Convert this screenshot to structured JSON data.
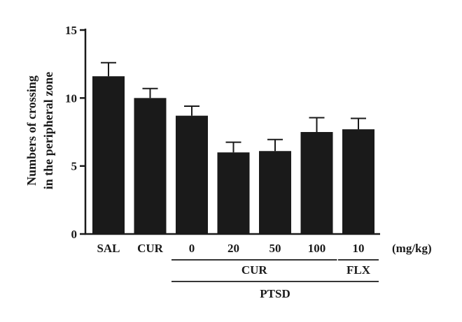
{
  "chart_data": {
    "type": "bar",
    "title": "",
    "ylabel_lines": [
      "Numbers of crossing",
      "in the peripheral zone"
    ],
    "ylim": [
      0,
      15
    ],
    "yticks": [
      0,
      5,
      10,
      15
    ],
    "categories": [
      "SAL",
      "CUR",
      "0",
      "20",
      "50",
      "100",
      "10"
    ],
    "values": [
      11.6,
      10.0,
      8.7,
      6.0,
      6.1,
      7.5,
      7.7
    ],
    "errors": [
      1.0,
      0.7,
      0.7,
      0.75,
      0.85,
      1.05,
      0.8
    ],
    "unit_label": "(mg/kg)",
    "group_labels": [
      {
        "label": "CUR",
        "from": 2,
        "to": 5
      },
      {
        "label": "FLX",
        "from": 6,
        "to": 6
      },
      {
        "label": "PTSD",
        "from": 2,
        "to": 6
      }
    ],
    "bar_color": "#1a1a1a",
    "grid": false
  }
}
